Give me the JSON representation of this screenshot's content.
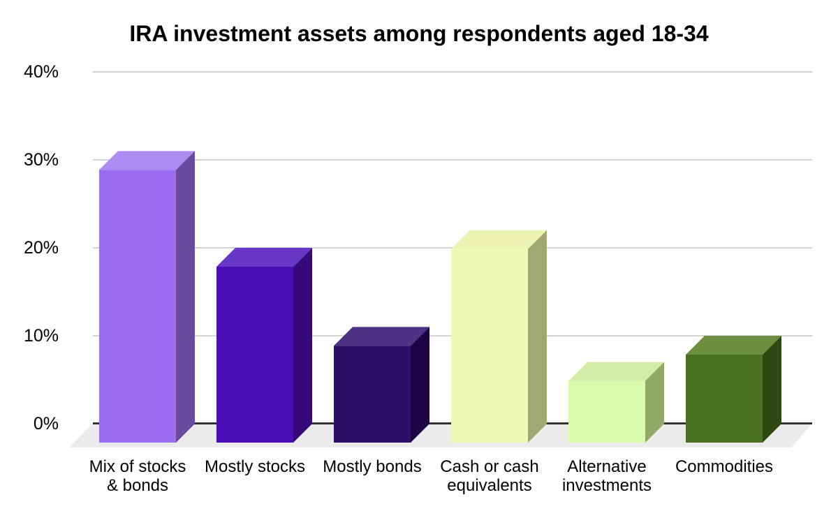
{
  "chart_data": {
    "type": "bar",
    "projection": "3d-column",
    "title": "IRA investment assets among respondents aged 18-34",
    "categories": [
      "Mix of stocks\n& bonds",
      "Mostly stocks",
      "Mostly bonds",
      "Cash or cash\nequivalents",
      "Alternative\ninvestments",
      "Commodities"
    ],
    "values": [
      31,
      20,
      11,
      22,
      7,
      10
    ],
    "value_unit": "%",
    "xlabel": "",
    "ylabel": "",
    "ylim": [
      0,
      40
    ],
    "yticks": [
      0,
      10,
      20,
      30,
      40
    ],
    "ytick_labels": [
      "0%",
      "10%",
      "20%",
      "30%",
      "40%"
    ],
    "grid": true,
    "legend": "none",
    "colors": {
      "bars": [
        {
          "front": "#9c6cf1",
          "top": "#ae8df3",
          "side": "#6a4a9c"
        },
        {
          "front": "#4b0db5",
          "top": "#6737c8",
          "side": "#36087b"
        },
        {
          "front": "#2f0e68",
          "top": "#4d3185",
          "side": "#1d0343"
        },
        {
          "front": "#eff9b6",
          "top": "#ecf3b1",
          "side": "#a0a871"
        },
        {
          "front": "#d8fbac",
          "top": "#d3eda9",
          "side": "#91a967"
        },
        {
          "front": "#4a7122",
          "top": "#6c8f40",
          "side": "#2d4911"
        }
      ],
      "gridline": "#d3d3d3",
      "axis_line": "#333333",
      "floor": "#ebebeb",
      "background": "#ffffff",
      "text": "#000000"
    }
  }
}
